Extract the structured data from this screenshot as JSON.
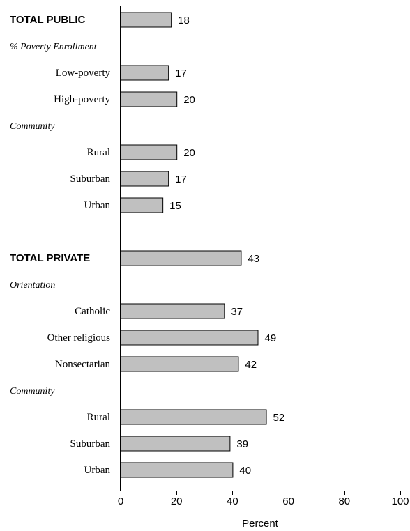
{
  "chart_data": {
    "type": "bar",
    "orientation": "horizontal",
    "bar_color": "#c0c0c0",
    "border_color": "#000000",
    "xlabel": "Percent",
    "xlim": [
      0,
      100
    ],
    "xticks": [
      0,
      20,
      40,
      60,
      80,
      100
    ],
    "grid": false,
    "rows": [
      {
        "kind": "total",
        "label": "TOTAL PUBLIC",
        "value": 18
      },
      {
        "kind": "section",
        "label": "% Poverty Enrollment"
      },
      {
        "kind": "item",
        "label": "Low-poverty",
        "value": 17
      },
      {
        "kind": "item",
        "label": "High-poverty",
        "value": 20
      },
      {
        "kind": "section",
        "label": "Community"
      },
      {
        "kind": "item",
        "label": "Rural",
        "value": 20
      },
      {
        "kind": "item",
        "label": "Suburban",
        "value": 17
      },
      {
        "kind": "item",
        "label": "Urban",
        "value": 15
      },
      {
        "kind": "spacer"
      },
      {
        "kind": "total",
        "label": "TOTAL PRIVATE",
        "value": 43
      },
      {
        "kind": "section",
        "label": "Orientation"
      },
      {
        "kind": "item",
        "label": "Catholic",
        "value": 37
      },
      {
        "kind": "item",
        "label": "Other religious",
        "value": 49
      },
      {
        "kind": "item",
        "label": "Nonsectarian",
        "value": 42
      },
      {
        "kind": "section",
        "label": "Community"
      },
      {
        "kind": "item",
        "label": "Rural",
        "value": 52
      },
      {
        "kind": "item",
        "label": "Suburban",
        "value": 39
      },
      {
        "kind": "item",
        "label": "Urban",
        "value": 40
      }
    ]
  }
}
